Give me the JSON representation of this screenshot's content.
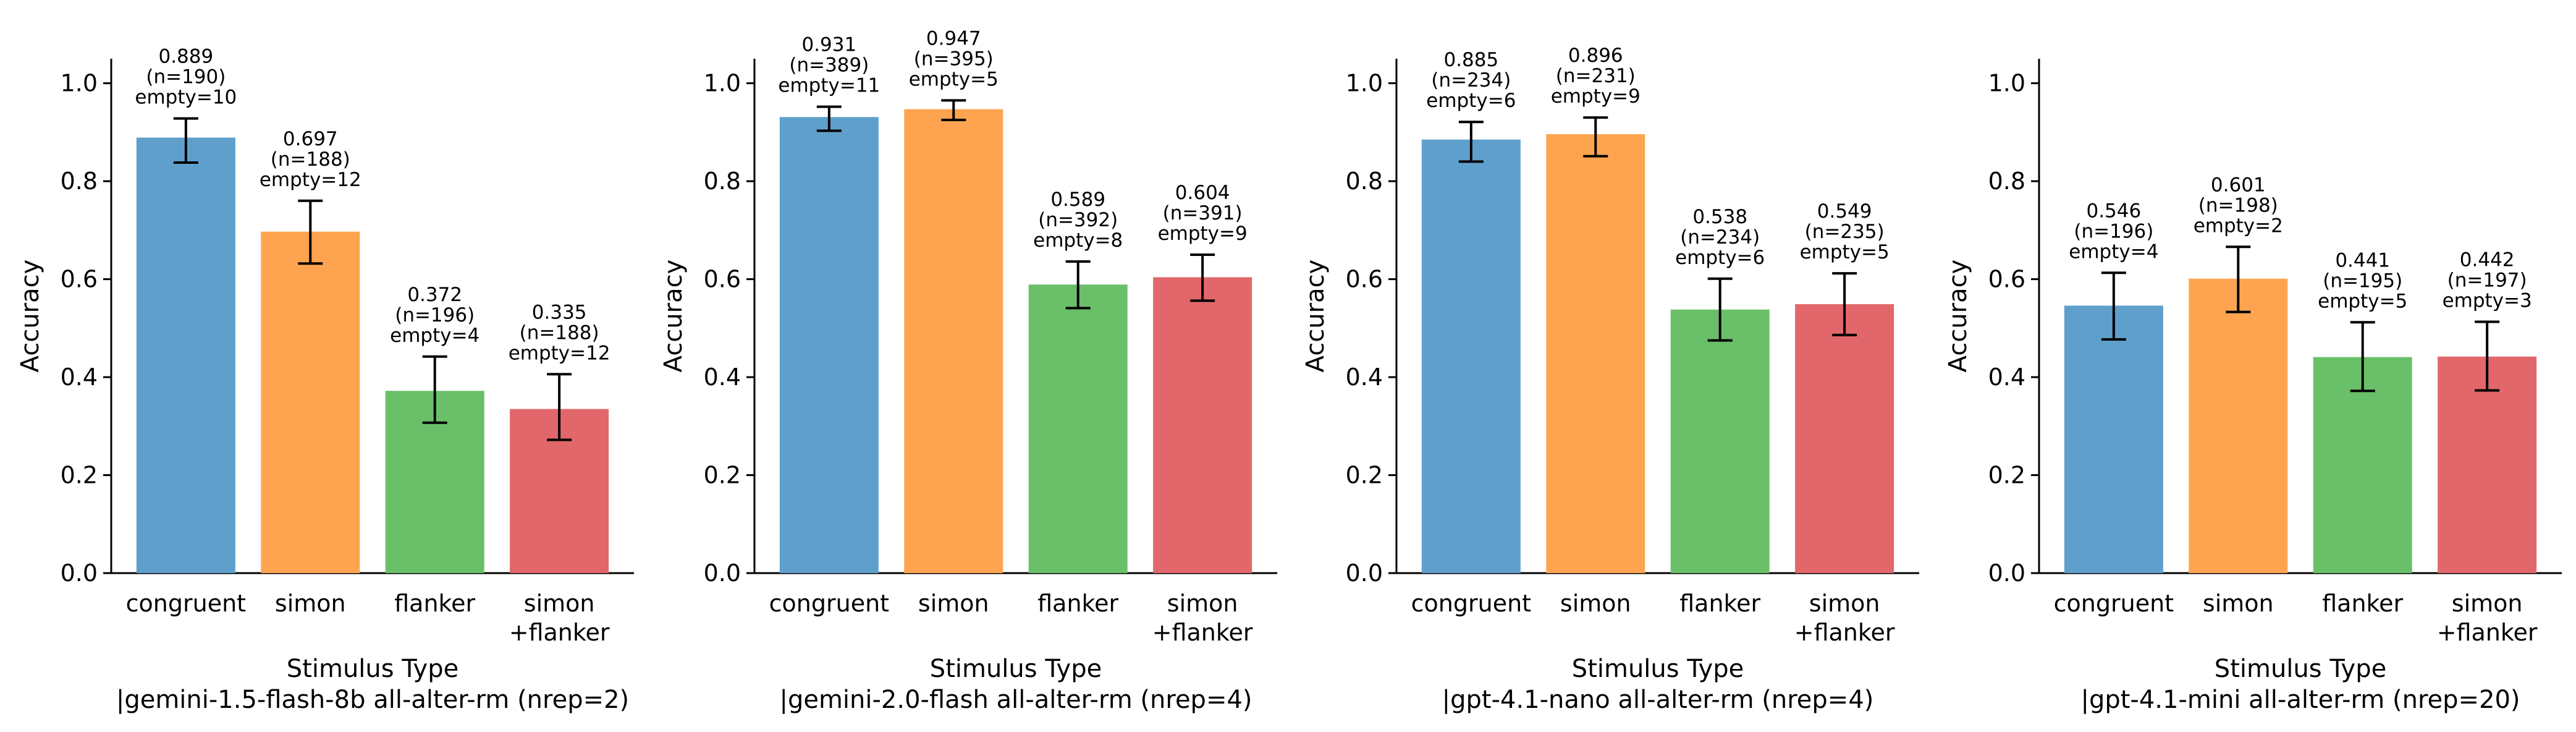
{
  "chart_data": [
    {
      "type": "bar",
      "xlabel": "Stimulus Type\n|gemini-1.5-flash-8b all-alter-rm (nrep=2)",
      "ylabel": "Accuracy",
      "ylim": [
        0,
        1.05
      ],
      "yticks": [
        "0.0",
        "0.2",
        "0.4",
        "0.6",
        "0.8",
        "1.0"
      ],
      "categories": [
        "congruent",
        "simon",
        "flanker",
        "simon\n+flanker"
      ],
      "values": [
        0.889,
        0.697,
        0.372,
        0.335
      ],
      "error_low": [
        0.838,
        0.632,
        0.307,
        0.272
      ],
      "error_high": [
        0.928,
        0.76,
        0.442,
        0.406
      ],
      "annotations": [
        "0.889\n(n=190)\nempty=10",
        "0.697\n(n=188)\nempty=12",
        "0.372\n(n=196)\nempty=4",
        "0.335\n(n=188)\nempty=12"
      ],
      "colors": [
        "#5f9fcc",
        "#fea450",
        "#6abf69",
        "#e2676a"
      ]
    },
    {
      "type": "bar",
      "xlabel": "Stimulus Type\n|gemini-2.0-flash all-alter-rm (nrep=4)",
      "ylabel": "Accuracy",
      "ylim": [
        0,
        1.05
      ],
      "yticks": [
        "0.0",
        "0.2",
        "0.4",
        "0.6",
        "0.8",
        "1.0"
      ],
      "categories": [
        "congruent",
        "simon",
        "flanker",
        "simon\n+flanker"
      ],
      "values": [
        0.931,
        0.947,
        0.589,
        0.604
      ],
      "error_low": [
        0.903,
        0.925,
        0.541,
        0.556
      ],
      "error_high": [
        0.952,
        0.965,
        0.636,
        0.65
      ],
      "annotations": [
        "0.931\n(n=389)\nempty=11",
        "0.947\n(n=395)\nempty=5",
        "0.589\n(n=392)\nempty=8",
        "0.604\n(n=391)\nempty=9"
      ],
      "colors": [
        "#5f9fcc",
        "#fea450",
        "#6abf69",
        "#e2676a"
      ]
    },
    {
      "type": "bar",
      "xlabel": "Stimulus Type\n|gpt-4.1-nano all-alter-rm (nrep=4)",
      "ylabel": "Accuracy",
      "ylim": [
        0,
        1.05
      ],
      "yticks": [
        "0.0",
        "0.2",
        "0.4",
        "0.6",
        "0.8",
        "1.0"
      ],
      "categories": [
        "congruent",
        "simon",
        "flanker",
        "simon\n+flanker"
      ],
      "values": [
        0.885,
        0.896,
        0.538,
        0.549
      ],
      "error_low": [
        0.84,
        0.851,
        0.475,
        0.486
      ],
      "error_high": [
        0.921,
        0.93,
        0.601,
        0.612
      ],
      "annotations": [
        "0.885\n(n=234)\nempty=6",
        "0.896\n(n=231)\nempty=9",
        "0.538\n(n=234)\nempty=6",
        "0.549\n(n=235)\nempty=5"
      ],
      "colors": [
        "#5f9fcc",
        "#fea450",
        "#6abf69",
        "#e2676a"
      ]
    },
    {
      "type": "bar",
      "xlabel": "Stimulus Type\n|gpt-4.1-mini all-alter-rm (nrep=20)",
      "ylabel": "Accuracy",
      "ylim": [
        0,
        1.05
      ],
      "yticks": [
        "0.0",
        "0.2",
        "0.4",
        "0.6",
        "0.8",
        "1.0"
      ],
      "categories": [
        "congruent",
        "simon",
        "flanker",
        "simon\n+flanker"
      ],
      "values": [
        0.546,
        0.601,
        0.441,
        0.442
      ],
      "error_low": [
        0.477,
        0.533,
        0.372,
        0.373
      ],
      "error_high": [
        0.613,
        0.666,
        0.512,
        0.513
      ],
      "annotations": [
        "0.546\n(n=196)\nempty=4",
        "0.601\n(n=198)\nempty=2",
        "0.441\n(n=195)\nempty=5",
        "0.442\n(n=197)\nempty=3"
      ],
      "colors": [
        "#5f9fcc",
        "#fea450",
        "#6abf69",
        "#e2676a"
      ]
    }
  ]
}
